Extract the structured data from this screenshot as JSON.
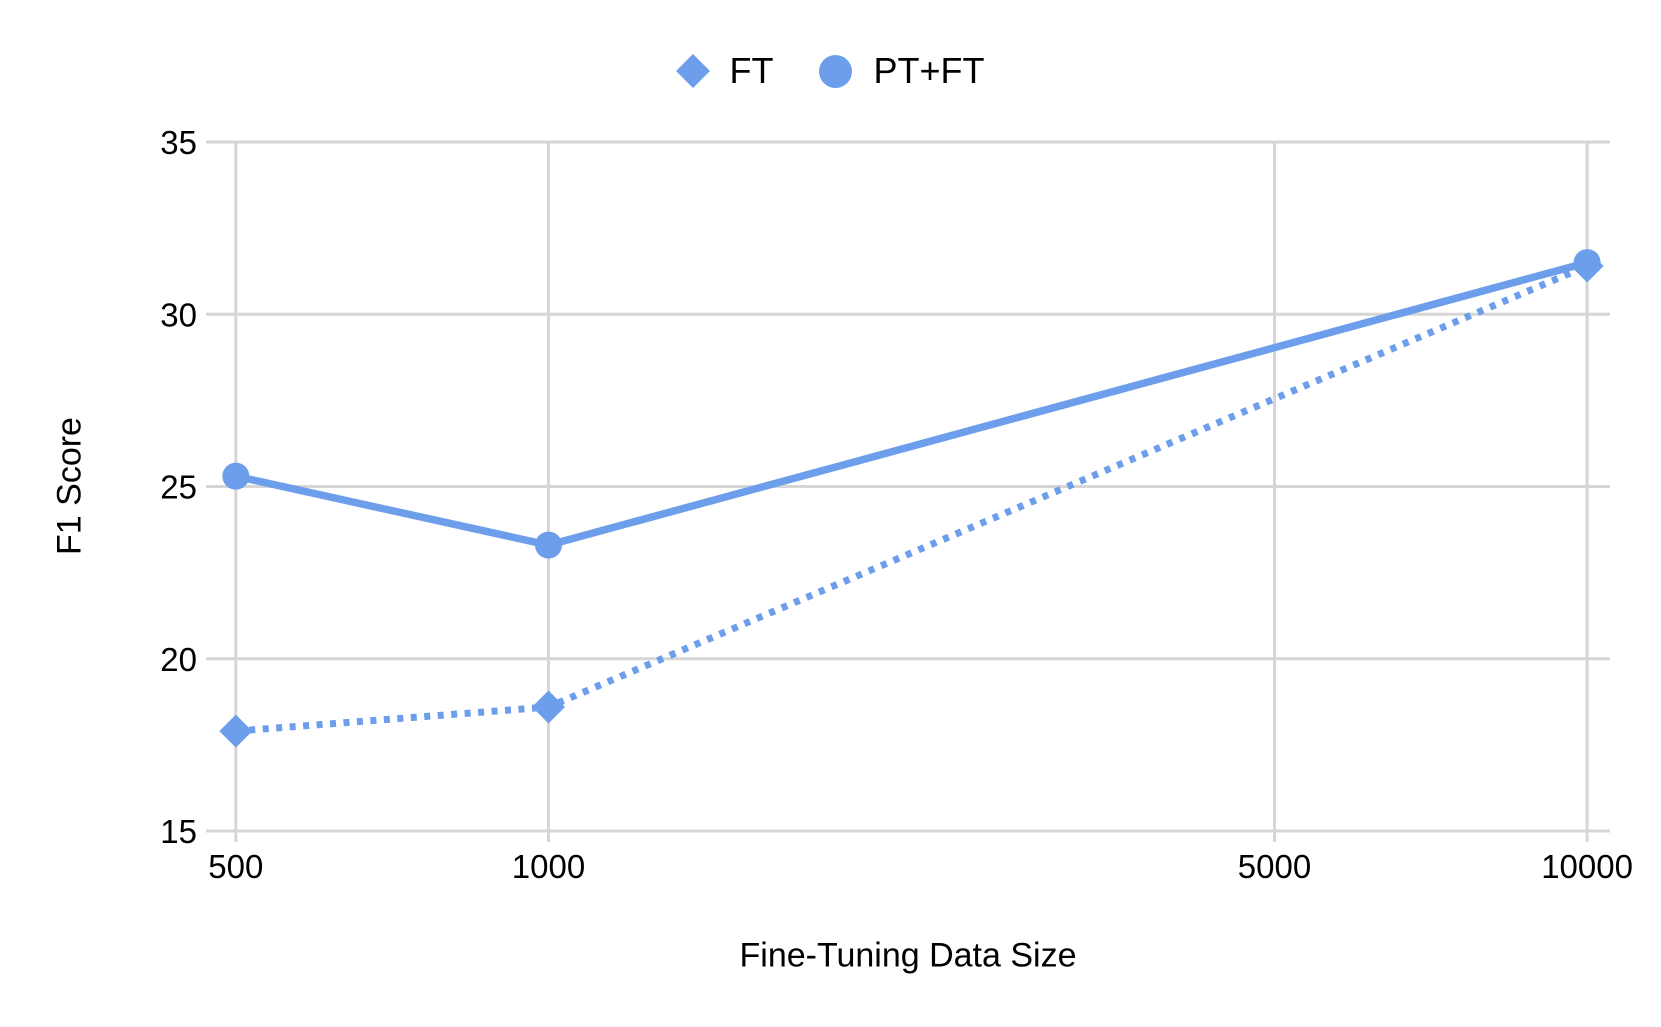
{
  "chart_data": {
    "type": "line",
    "title": "",
    "xlabel": "Fine-Tuning Data Size",
    "ylabel": "F1 Score",
    "x_scale": "log",
    "x": [
      500,
      1000,
      10000
    ],
    "series": [
      {
        "name": "FT",
        "marker": "diamond",
        "line_style": "dotted",
        "values": [
          17.9,
          18.6,
          31.4
        ]
      },
      {
        "name": "PT+FT",
        "marker": "circle",
        "line_style": "solid",
        "values": [
          25.3,
          23.3,
          31.5
        ]
      }
    ],
    "x_ticks": [
      500,
      1000,
      5000,
      10000
    ],
    "x_tick_labels": [
      "500",
      "1000",
      "5000",
      "10000"
    ],
    "y_ticks": [
      15,
      20,
      25,
      30,
      35
    ],
    "y_tick_labels": [
      "15",
      "20",
      "25",
      "30",
      "35"
    ],
    "ylim": [
      15,
      35
    ],
    "x_domain": [
      468,
      10520
    ],
    "grid": true,
    "legend_position": "top",
    "colors": {
      "series": "#6D9EEB",
      "gridline": "#D6D6D6",
      "text": "#000000",
      "background": "#FFFFFF"
    }
  }
}
